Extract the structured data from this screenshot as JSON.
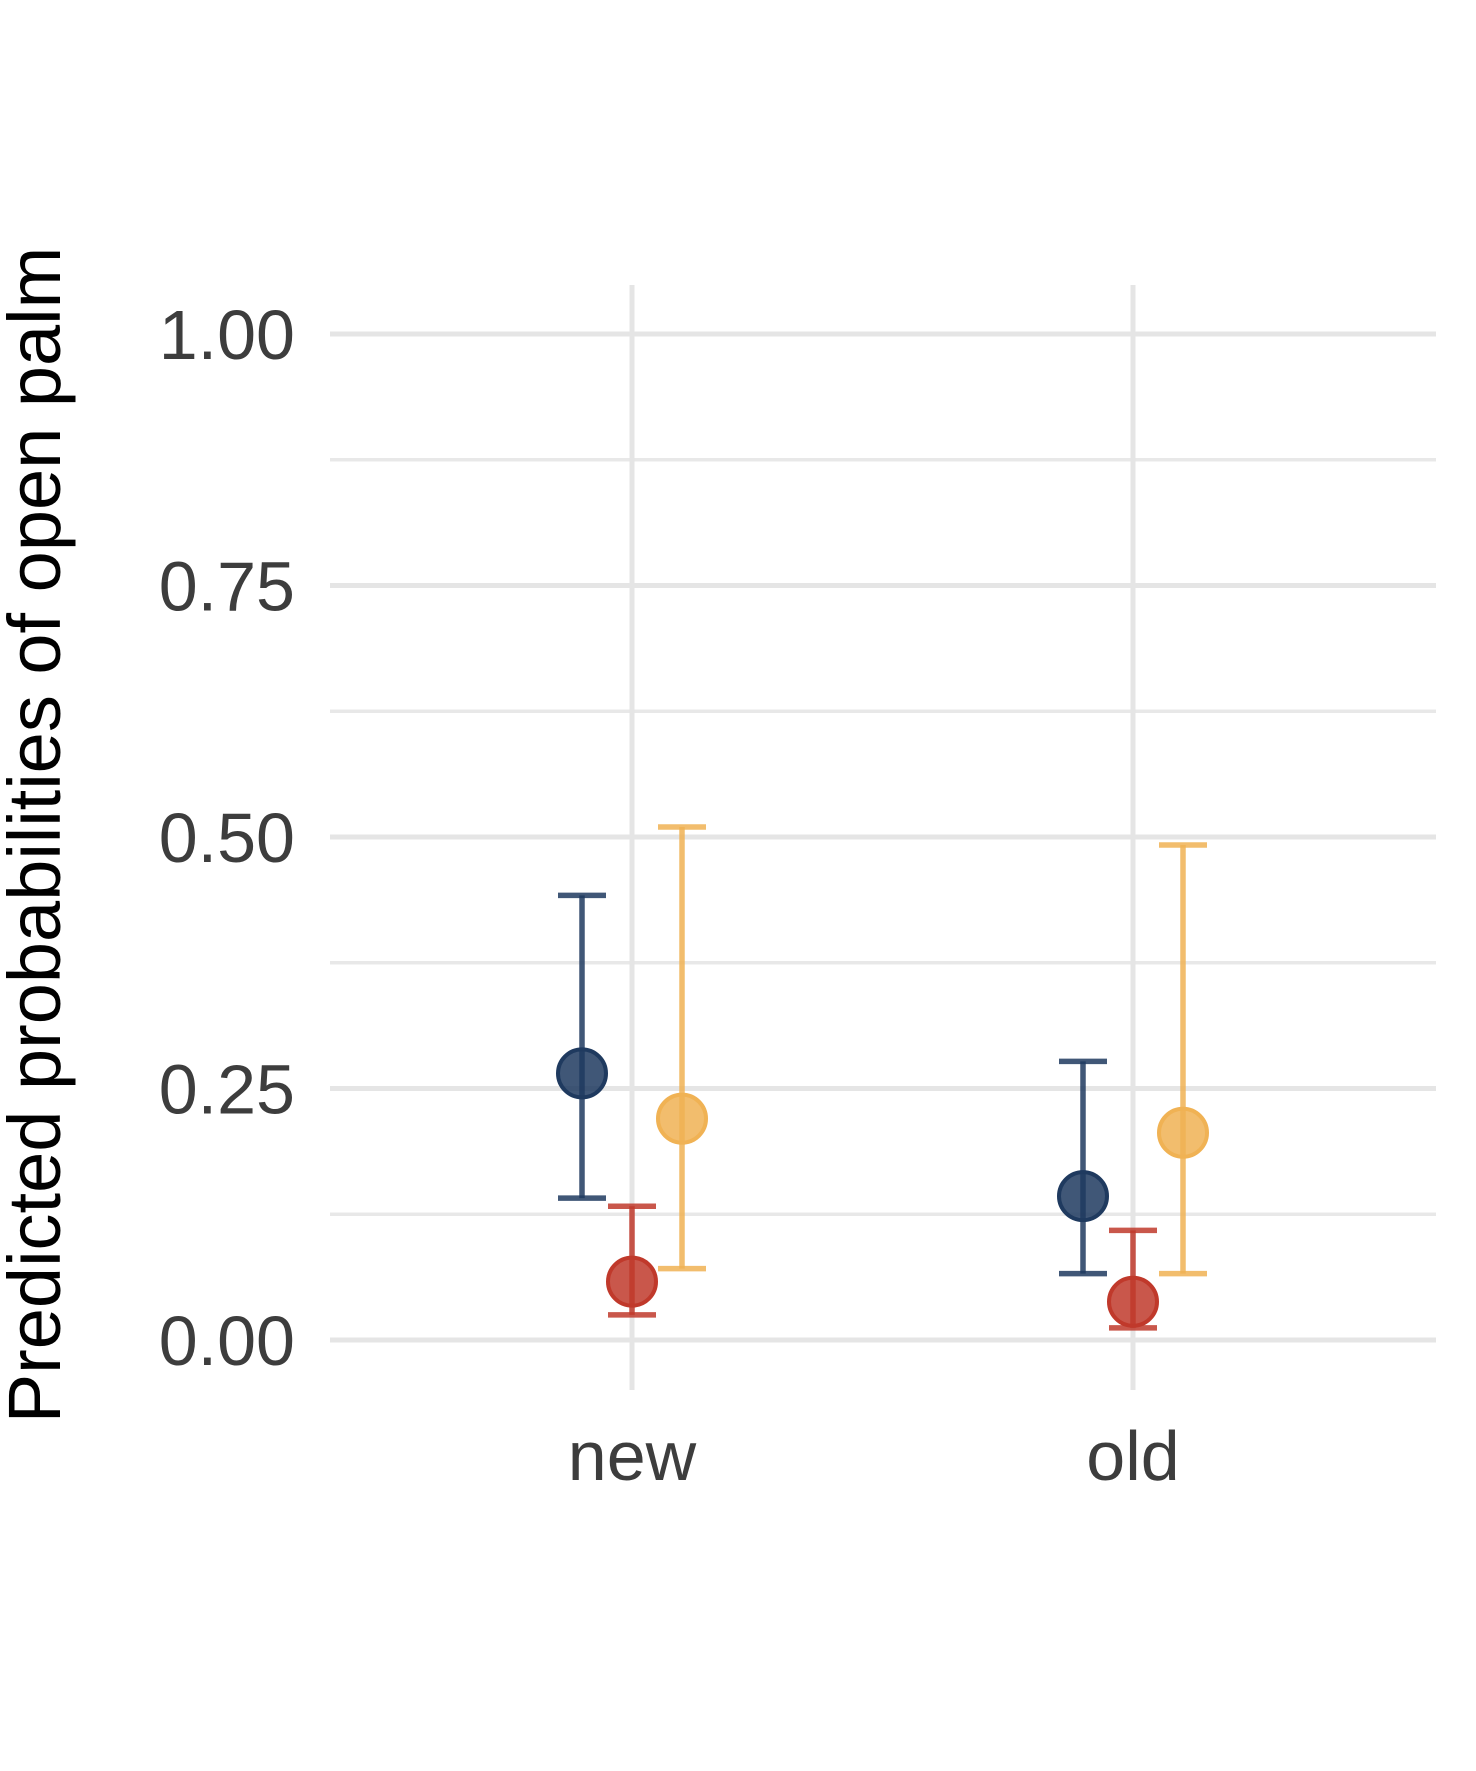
{
  "chart_data": {
    "type": "scatter",
    "subtype": "point-range (points with error bars)",
    "title": "",
    "xlabel": "",
    "ylabel": "Predicted probabilities of open palm",
    "categories": [
      "new",
      "old"
    ],
    "ylim": [
      -0.05,
      1.05
    ],
    "yticks": [
      0,
      0.25,
      0.5,
      0.75,
      1
    ],
    "ytick_labels": [
      "0.00",
      "0.25",
      "0.50",
      "0.75",
      "1.00"
    ],
    "grid": true,
    "legend": "none",
    "series": [
      {
        "color": "#1f3a5f",
        "values": [
          0.265,
          0.143
        ],
        "lower": [
          0.141,
          0.066
        ],
        "upper": [
          0.442,
          0.277
        ]
      },
      {
        "color": "#c0392b",
        "values": [
          0.058,
          0.038
        ],
        "lower": [
          0.025,
          0.012
        ],
        "upper": [
          0.133,
          0.109
        ]
      },
      {
        "color": "#f0b254",
        "values": [
          0.22,
          0.206
        ],
        "lower": [
          0.071,
          0.066
        ],
        "upper": [
          0.51,
          0.492
        ]
      }
    ]
  }
}
